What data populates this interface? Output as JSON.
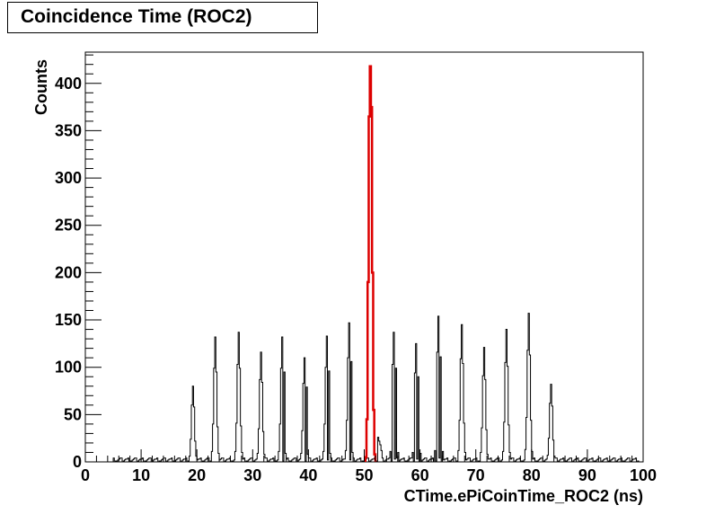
{
  "chart_data": {
    "type": "histogram",
    "title": "Coincidence Time (ROC2)",
    "xlabel": "CTime.ePiCoinTime_ROC2 (ns)",
    "ylabel": "Counts",
    "xlim": [
      0,
      100
    ],
    "ylim": [
      0,
      433
    ],
    "x_ticks": [
      0,
      10,
      20,
      30,
      40,
      50,
      60,
      70,
      80,
      90,
      100
    ],
    "y_ticks": [
      0,
      50,
      100,
      150,
      200,
      250,
      300,
      350,
      400
    ],
    "grid": false,
    "legend": "none",
    "bin_width": 0.2,
    "series": [
      {
        "color": "#000000",
        "peak_profile_offsets": [
          -0.6,
          -0.4,
          -0.2,
          0,
          0.2,
          0.4,
          0.6
        ],
        "peak_profile_fractions": [
          0.08,
          0.3,
          0.75,
          1.0,
          0.72,
          0.28,
          0.07
        ],
        "peaks": [
          {
            "x": 19.2,
            "counts": 80
          },
          {
            "x": 23.2,
            "counts": 132
          },
          {
            "x": 27.3,
            "counts": 137
          },
          {
            "x": 31.3,
            "counts": 116
          },
          {
            "x": 35.3,
            "counts": 132
          },
          {
            "x": 39.3,
            "counts": 110
          },
          {
            "x": 43.3,
            "counts": 133
          },
          {
            "x": 47.3,
            "counts": 147
          },
          {
            "x": 55.3,
            "counts": 137
          },
          {
            "x": 59.3,
            "counts": 125
          },
          {
            "x": 63.3,
            "counts": 154
          },
          {
            "x": 67.4,
            "counts": 145
          },
          {
            "x": 71.4,
            "counts": 121
          },
          {
            "x": 75.4,
            "counts": 140
          },
          {
            "x": 79.4,
            "counts": 157
          },
          {
            "x": 83.4,
            "counts": 82
          }
        ],
        "background_level": 3,
        "background_range": [
          5,
          99
        ],
        "extra_bins": [
          {
            "x": 52.4,
            "counts": 26
          },
          {
            "x": 52.6,
            "counts": 22
          },
          {
            "x": 52.8,
            "counts": 18
          },
          {
            "x": 53.0,
            "counts": 12
          }
        ]
      },
      {
        "color": "#dd0000",
        "bins": [
          {
            "x": 50.2,
            "counts": 5
          },
          {
            "x": 50.4,
            "counts": 45
          },
          {
            "x": 50.6,
            "counts": 190
          },
          {
            "x": 50.8,
            "counts": 365
          },
          {
            "x": 51.0,
            "counts": 418
          },
          {
            "x": 51.2,
            "counts": 375
          },
          {
            "x": 51.4,
            "counts": 200
          },
          {
            "x": 51.6,
            "counts": 55
          },
          {
            "x": 51.8,
            "counts": 8
          }
        ]
      }
    ]
  }
}
